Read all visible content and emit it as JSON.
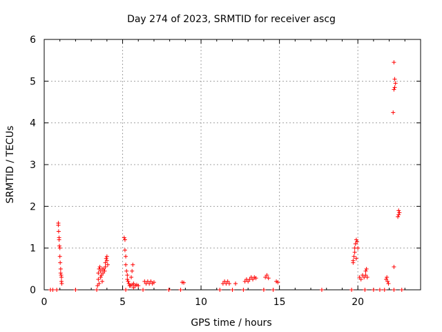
{
  "chart_data": {
    "type": "scatter",
    "title": "Day 274 of 2023, SRMTID for receiver ascg",
    "xlabel": "GPS time / hours",
    "ylabel": "SRMTID / TECUs",
    "xlim": [
      0,
      24
    ],
    "ylim": [
      0,
      6
    ],
    "xticks": [
      0,
      5,
      10,
      15,
      20
    ],
    "xtick_labels": [
      "0",
      "5",
      "10",
      "15",
      "20"
    ],
    "yticks": [
      0,
      1,
      2,
      3,
      4,
      5,
      6
    ],
    "ytick_labels": [
      "0",
      "1",
      "2",
      "3",
      "4",
      "5",
      "6"
    ],
    "grid": true,
    "marker": "+",
    "color": "#ff0000",
    "series": [
      {
        "name": "SRMTID",
        "points": [
          [
            0.4,
            0.0
          ],
          [
            0.55,
            0.0
          ],
          [
            0.8,
            0.0
          ],
          [
            0.9,
            1.6
          ],
          [
            0.9,
            1.55
          ],
          [
            0.92,
            1.4
          ],
          [
            0.95,
            1.25
          ],
          [
            0.95,
            1.2
          ],
          [
            0.97,
            1.05
          ],
          [
            1.0,
            1.0
          ],
          [
            1.0,
            0.8
          ],
          [
            1.02,
            0.65
          ],
          [
            1.05,
            0.5
          ],
          [
            1.05,
            0.4
          ],
          [
            1.08,
            0.35
          ],
          [
            1.1,
            0.3
          ],
          [
            1.1,
            0.2
          ],
          [
            1.12,
            0.15
          ],
          [
            2.0,
            0.0
          ],
          [
            3.35,
            0.0
          ],
          [
            3.4,
            0.1
          ],
          [
            3.45,
            0.25
          ],
          [
            3.45,
            0.4
          ],
          [
            3.5,
            0.5
          ],
          [
            3.55,
            0.55
          ],
          [
            3.6,
            0.45
          ],
          [
            3.65,
            0.35
          ],
          [
            3.7,
            0.5
          ],
          [
            3.75,
            0.4
          ],
          [
            3.8,
            0.5
          ],
          [
            3.85,
            0.45
          ],
          [
            3.9,
            0.55
          ],
          [
            3.9,
            0.65
          ],
          [
            3.95,
            0.75
          ],
          [
            4.0,
            0.8
          ],
          [
            4.0,
            0.7
          ],
          [
            4.05,
            0.6
          ],
          [
            3.6,
            0.3
          ],
          [
            3.7,
            0.2
          ],
          [
            3.5,
            0.15
          ],
          [
            5.1,
            1.25
          ],
          [
            5.15,
            1.2
          ],
          [
            5.15,
            0.95
          ],
          [
            5.2,
            0.8
          ],
          [
            5.2,
            0.6
          ],
          [
            5.25,
            0.45
          ],
          [
            5.3,
            0.35
          ],
          [
            5.3,
            0.25
          ],
          [
            5.35,
            0.2
          ],
          [
            5.4,
            0.15
          ],
          [
            5.45,
            0.1
          ],
          [
            5.5,
            0.1
          ],
          [
            5.6,
            0.12
          ],
          [
            5.7,
            0.15
          ],
          [
            5.8,
            0.1
          ],
          [
            5.9,
            0.12
          ],
          [
            6.0,
            0.1
          ],
          [
            5.55,
            0.3
          ],
          [
            5.6,
            0.45
          ],
          [
            5.65,
            0.6
          ],
          [
            5.2,
            0.0
          ],
          [
            5.7,
            0.05
          ],
          [
            6.3,
            0.0
          ],
          [
            6.4,
            0.2
          ],
          [
            6.5,
            0.15
          ],
          [
            6.6,
            0.2
          ],
          [
            6.7,
            0.15
          ],
          [
            6.8,
            0.2
          ],
          [
            6.9,
            0.15
          ],
          [
            7.0,
            0.18
          ],
          [
            7.95,
            0.0
          ],
          [
            8.7,
            0.0
          ],
          [
            8.8,
            0.18
          ],
          [
            8.9,
            0.17
          ],
          [
            11.2,
            0.0
          ],
          [
            11.4,
            0.15
          ],
          [
            11.5,
            0.2
          ],
          [
            11.6,
            0.15
          ],
          [
            11.7,
            0.2
          ],
          [
            11.8,
            0.15
          ],
          [
            12.0,
            0.0
          ],
          [
            12.2,
            0.15
          ],
          [
            12.7,
            0.0
          ],
          [
            12.8,
            0.2
          ],
          [
            12.9,
            0.25
          ],
          [
            13.0,
            0.2
          ],
          [
            13.1,
            0.25
          ],
          [
            13.2,
            0.3
          ],
          [
            13.3,
            0.25
          ],
          [
            13.4,
            0.3
          ],
          [
            13.5,
            0.28
          ],
          [
            14.0,
            0.0
          ],
          [
            14.1,
            0.3
          ],
          [
            14.2,
            0.35
          ],
          [
            14.3,
            0.28
          ],
          [
            14.6,
            0.0
          ],
          [
            14.8,
            0.2
          ],
          [
            14.9,
            0.18
          ],
          [
            17.7,
            0.0
          ],
          [
            19.6,
            0.0
          ],
          [
            19.7,
            0.7
          ],
          [
            19.75,
            0.8
          ],
          [
            19.8,
            0.9
          ],
          [
            19.8,
            1.0
          ],
          [
            19.85,
            1.1
          ],
          [
            19.9,
            1.2
          ],
          [
            19.95,
            1.15
          ],
          [
            20.0,
            1.0
          ],
          [
            19.9,
            0.75
          ],
          [
            19.7,
            0.65
          ],
          [
            20.1,
            0.3
          ],
          [
            20.2,
            0.25
          ],
          [
            20.3,
            0.35
          ],
          [
            20.4,
            0.3
          ],
          [
            20.5,
            0.35
          ],
          [
            20.55,
            0.5
          ],
          [
            20.5,
            0.45
          ],
          [
            20.6,
            0.3
          ],
          [
            20.45,
            0.0
          ],
          [
            21.0,
            0.0
          ],
          [
            21.4,
            0.0
          ],
          [
            21.7,
            0.0
          ],
          [
            21.8,
            0.25
          ],
          [
            21.85,
            0.3
          ],
          [
            21.9,
            0.2
          ],
          [
            21.95,
            0.15
          ],
          [
            22.3,
            5.45
          ],
          [
            22.35,
            5.05
          ],
          [
            22.35,
            4.85
          ],
          [
            22.3,
            4.8
          ],
          [
            22.4,
            4.95
          ],
          [
            22.25,
            4.25
          ],
          [
            22.3,
            0.55
          ],
          [
            22.3,
            0.0
          ],
          [
            22.6,
            1.9
          ],
          [
            22.65,
            1.85
          ],
          [
            22.6,
            1.8
          ],
          [
            22.55,
            1.75
          ],
          [
            22.8,
            0.0
          ]
        ]
      }
    ]
  }
}
